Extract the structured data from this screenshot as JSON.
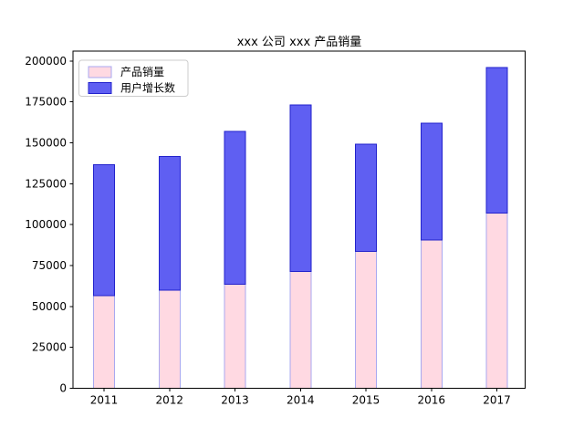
{
  "chart_data": {
    "type": "bar",
    "stacked": true,
    "title": "xxx 公司 xxx 产品销量",
    "categories": [
      "2011",
      "2012",
      "2013",
      "2014",
      "2015",
      "2016",
      "2017"
    ],
    "series": [
      {
        "name": "产品销量",
        "values": [
          56500,
          60000,
          63500,
          71500,
          83500,
          90500,
          107000
        ],
        "fill": "#ffd9e2",
        "edge": "#a8a8f0"
      },
      {
        "name": "用户增长数",
        "values": [
          80000,
          81500,
          93500,
          101500,
          65500,
          71500,
          89000
        ],
        "fill": "#5f5ff2",
        "edge": "#2222cc"
      }
    ],
    "xlabel": "",
    "ylabel": "",
    "ylim": [
      0,
      206000
    ],
    "yticks": [
      0,
      25000,
      50000,
      75000,
      100000,
      125000,
      150000,
      175000,
      200000
    ],
    "ytick_labels": [
      "0",
      "25000",
      "50000",
      "75000",
      "100000",
      "125000",
      "150000",
      "175000",
      "200000"
    ],
    "grid": false,
    "legend_position": "upper left",
    "axis_color": "#000000",
    "background_color": "#ffffff",
    "legend_border_color": "#cccccc"
  }
}
